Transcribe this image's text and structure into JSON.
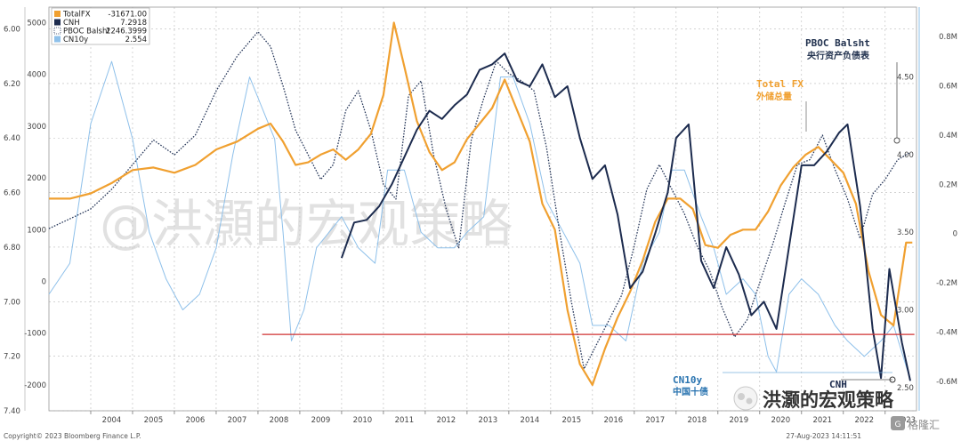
{
  "colors": {
    "totalfx": "#f0a030",
    "cnh": "#1c2b4e",
    "pboc": "#2a3a5c",
    "cn10y": "#8ec0ea",
    "refline": "#d03030",
    "grid": "#b9b9b9",
    "annotation_blue": "#2a74b0"
  },
  "chart_data": {
    "type": "line",
    "x_range": [
      2003.0,
      2023.75
    ],
    "x_ticks": [
      "2004",
      "2005",
      "2006",
      "2007",
      "2008",
      "2009",
      "2010",
      "2011",
      "2012",
      "2013",
      "2014",
      "2015",
      "2016",
      "2017",
      "2018",
      "2019",
      "2020",
      "2021",
      "2022",
      "2023"
    ],
    "axes": {
      "left_outer": {
        "series": "TotalFX",
        "range": [
          -2500,
          5300
        ],
        "ticks": [
          "5000",
          "4000",
          "3000",
          "2000",
          "1000",
          "0",
          "-1000",
          "-2000"
        ]
      },
      "left_inner": {
        "series": "CNH",
        "range": [
          7.4,
          5.92
        ],
        "ticks": [
          "6.00",
          "6.20",
          "6.40",
          "6.60",
          "6.80",
          "7.00",
          "7.20",
          "7.40"
        ]
      },
      "right_inner": {
        "series": "CN10y",
        "range": [
          2.35,
          4.95
        ],
        "ticks": [
          "4.50",
          "4.00",
          "3.50",
          "3.00",
          "2.50"
        ]
      },
      "right_outer": {
        "series": "PBOC Balsht",
        "range": [
          -0.72,
          0.92
        ],
        "ticks": [
          "0.8M",
          "0.6M",
          "0.4M",
          "0.2M",
          "0",
          "-0.2M",
          "-0.4M",
          "-0.6M"
        ]
      }
    },
    "legend": [
      {
        "name": "TotalFX",
        "value": "-31671.00"
      },
      {
        "name": "CNH",
        "value": "7.2918"
      },
      {
        "name": "PBOC Balsht",
        "value": "2246.3999"
      },
      {
        "name": "CN10y",
        "value": "2.554"
      }
    ],
    "reference_line": {
      "axis": "CNH",
      "value": 7.12
    },
    "series": [
      {
        "name": "TotalFX",
        "axis": "left_outer",
        "x": [
          2003.0,
          2003.5,
          2004.0,
          2004.5,
          2005.0,
          2005.5,
          2006.0,
          2006.5,
          2007.0,
          2007.5,
          2008.0,
          2008.3,
          2008.6,
          2008.9,
          2009.2,
          2009.5,
          2009.8,
          2010.1,
          2010.4,
          2010.7,
          2011.0,
          2011.25,
          2011.5,
          2011.8,
          2012.1,
          2012.4,
          2012.7,
          2013.0,
          2013.3,
          2013.6,
          2013.9,
          2014.2,
          2014.5,
          2014.8,
          2015.1,
          2015.4,
          2015.7,
          2016.0,
          2016.3,
          2016.6,
          2016.9,
          2017.2,
          2017.5,
          2017.8,
          2018.1,
          2018.4,
          2018.7,
          2019.0,
          2019.3,
          2019.6,
          2019.9,
          2020.2,
          2020.5,
          2020.8,
          2021.1,
          2021.4,
          2021.7,
          2022.0,
          2022.3,
          2022.6,
          2022.9,
          2023.2,
          2023.5,
          2023.65
        ],
        "values": [
          1600,
          1600,
          1700,
          1900,
          2150,
          2200,
          2100,
          2250,
          2550,
          2700,
          2950,
          3050,
          2700,
          2250,
          2300,
          2450,
          2550,
          2350,
          2550,
          2850,
          3600,
          5000,
          4150,
          3100,
          2500,
          2150,
          2300,
          2750,
          3050,
          3350,
          3900,
          3300,
          2700,
          1500,
          1000,
          -550,
          -1600,
          -2000,
          -1300,
          -700,
          -200,
          400,
          1150,
          1600,
          1600,
          1400,
          700,
          650,
          900,
          1000,
          1000,
          1350,
          1850,
          2200,
          2450,
          2600,
          2350,
          2100,
          1500,
          200,
          -650,
          -850,
          750,
          750
        ]
      },
      {
        "name": "CNH",
        "axis": "left_inner",
        "x": [
          2010.0,
          2010.3,
          2010.6,
          2010.9,
          2011.2,
          2011.5,
          2011.8,
          2012.1,
          2012.4,
          2012.7,
          2013.0,
          2013.3,
          2013.6,
          2013.9,
          2014.2,
          2014.5,
          2014.8,
          2015.1,
          2015.4,
          2015.7,
          2016.0,
          2016.3,
          2016.6,
          2016.9,
          2017.2,
          2017.5,
          2017.8,
          2018.0,
          2018.3,
          2018.6,
          2018.9,
          2019.2,
          2019.5,
          2019.8,
          2020.1,
          2020.4,
          2020.7,
          2021.0,
          2021.3,
          2021.6,
          2021.9,
          2022.1,
          2022.4,
          2022.7,
          2022.9,
          2023.1,
          2023.4,
          2023.6
        ],
        "values": [
          6.84,
          6.71,
          6.7,
          6.65,
          6.57,
          6.47,
          6.37,
          6.3,
          6.33,
          6.28,
          6.24,
          6.15,
          6.13,
          6.09,
          6.19,
          6.21,
          6.13,
          6.25,
          6.21,
          6.4,
          6.55,
          6.5,
          6.68,
          6.95,
          6.89,
          6.75,
          6.6,
          6.4,
          6.35,
          6.85,
          6.95,
          6.8,
          6.9,
          7.05,
          7.0,
          7.1,
          6.8,
          6.5,
          6.5,
          6.45,
          6.38,
          6.35,
          6.65,
          7.1,
          7.28,
          6.88,
          7.15,
          7.29
        ]
      },
      {
        "name": "PBOC Balsht",
        "axis": "right_outer",
        "x": [
          2003.0,
          2003.5,
          2004.0,
          2004.5,
          2005.0,
          2005.5,
          2006.0,
          2006.5,
          2007.0,
          2007.5,
          2008.0,
          2008.3,
          2008.6,
          2008.9,
          2009.2,
          2009.5,
          2009.8,
          2010.1,
          2010.4,
          2010.7,
          2011.0,
          2011.3,
          2011.6,
          2011.9,
          2012.2,
          2012.5,
          2012.8,
          2013.1,
          2013.4,
          2013.7,
          2014.0,
          2014.3,
          2014.6,
          2014.9,
          2015.2,
          2015.5,
          2015.8,
          2016.1,
          2016.4,
          2016.7,
          2017.0,
          2017.3,
          2017.6,
          2017.9,
          2018.2,
          2018.5,
          2018.8,
          2019.1,
          2019.4,
          2019.7,
          2020.0,
          2020.3,
          2020.6,
          2020.9,
          2021.2,
          2021.5,
          2021.8,
          2022.1,
          2022.4,
          2022.7,
          2023.0,
          2023.3,
          2023.6
        ],
        "values": [
          0.02,
          0.06,
          0.1,
          0.18,
          0.28,
          0.38,
          0.32,
          0.4,
          0.58,
          0.72,
          0.82,
          0.76,
          0.6,
          0.42,
          0.32,
          0.22,
          0.28,
          0.5,
          0.58,
          0.42,
          0.2,
          0.14,
          0.56,
          0.62,
          0.32,
          0.1,
          -0.06,
          0.38,
          0.55,
          0.7,
          0.65,
          0.62,
          0.58,
          0.35,
          0.02,
          -0.28,
          -0.55,
          -0.45,
          -0.35,
          -0.25,
          -0.05,
          0.18,
          0.28,
          0.18,
          0.08,
          -0.05,
          -0.15,
          -0.3,
          -0.42,
          -0.35,
          -0.2,
          -0.05,
          0.12,
          0.28,
          0.3,
          0.4,
          0.26,
          0.14,
          -0.02,
          0.16,
          0.22,
          0.3,
          0.33
        ]
      },
      {
        "name": "CN10y",
        "axis": "right_inner",
        "x": [
          2003.0,
          2003.5,
          2004.0,
          2004.5,
          2005.0,
          2005.4,
          2005.8,
          2006.2,
          2006.6,
          2007.0,
          2007.4,
          2007.8,
          2008.1,
          2008.4,
          2008.6,
          2008.8,
          2009.1,
          2009.4,
          2009.7,
          2010.0,
          2010.4,
          2010.8,
          2011.1,
          2011.5,
          2011.9,
          2012.3,
          2012.7,
          2013.0,
          2013.4,
          2013.8,
          2014.1,
          2014.5,
          2014.9,
          2015.3,
          2015.7,
          2016.0,
          2016.4,
          2016.8,
          2017.2,
          2017.6,
          2017.9,
          2018.2,
          2018.6,
          2018.9,
          2019.2,
          2019.6,
          2019.9,
          2020.2,
          2020.4,
          2020.7,
          2021.0,
          2021.4,
          2021.8,
          2022.1,
          2022.5,
          2022.9,
          2023.2,
          2023.6
        ],
        "values": [
          3.1,
          3.3,
          4.2,
          4.6,
          4.1,
          3.5,
          3.2,
          3.0,
          3.1,
          3.4,
          4.0,
          4.5,
          4.3,
          4.1,
          3.5,
          2.8,
          3.0,
          3.4,
          3.5,
          3.6,
          3.4,
          3.3,
          3.9,
          3.9,
          3.5,
          3.4,
          3.4,
          3.5,
          3.6,
          4.5,
          4.5,
          4.2,
          3.7,
          3.5,
          3.3,
          2.9,
          2.9,
          2.8,
          3.3,
          3.5,
          3.9,
          3.9,
          3.6,
          3.4,
          3.1,
          3.2,
          3.1,
          2.7,
          2.6,
          3.1,
          3.2,
          3.1,
          2.9,
          2.8,
          2.7,
          2.8,
          2.9,
          2.55
        ]
      }
    ]
  },
  "annotations": {
    "pboc_title": "PBOC Balsht",
    "pboc_sub": "央行资产负债表",
    "totalfx_title": "Total FX",
    "totalfx_sub": "外储总量",
    "cn10y_title": "CN10y",
    "cn10y_sub": "中国十债",
    "cnh_title": "CNH"
  },
  "watermark": "@洪灝的宏观策略",
  "watermark_small": "洪灏的宏观策略",
  "footer": {
    "copyright": "Copyright© 2023 Bloomberg Finance L.P.",
    "timestamp": "27-Aug-2023 14:11:51",
    "brand": "格隆汇"
  }
}
